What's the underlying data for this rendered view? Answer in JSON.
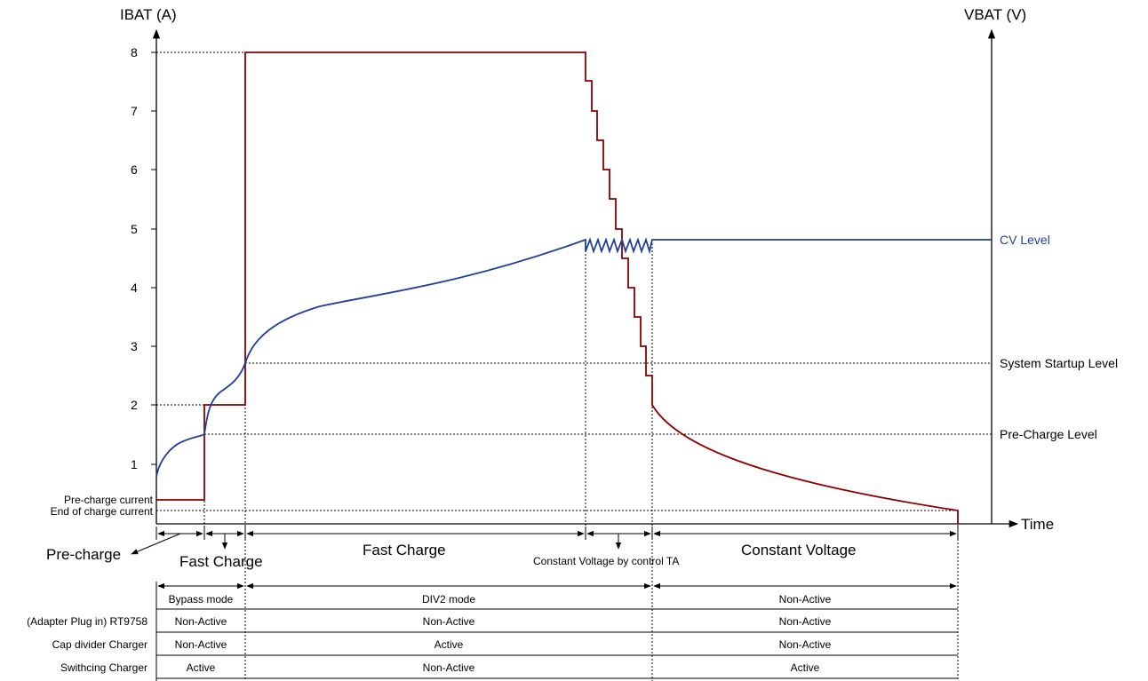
{
  "axes": {
    "left_label": "IBAT (A)",
    "right_label": "VBAT (V)",
    "x_label": "Time",
    "y_ticks": [
      "1",
      "2",
      "3",
      "4",
      "5",
      "6",
      "7",
      "8"
    ]
  },
  "left_level_labels": {
    "precharge_current": "Pre-charge current",
    "end_of_charge_current": "End of charge current"
  },
  "right_level_labels": {
    "cv_level": "CV Level",
    "system_startup": "System Startup Level",
    "precharge_level": "Pre-Charge Level"
  },
  "phases": {
    "precharge": "Pre-charge",
    "fast_charge_1": "Fast Charge",
    "fast_charge_2": "Fast Charge",
    "cv_by_ta": "Constant Voltage by control TA",
    "constant_voltage": "Constant Voltage"
  },
  "modes": {
    "bypass": "Bypass mode",
    "div2": "DIV2 mode",
    "non_active": "Non-Active"
  },
  "table": {
    "rows": [
      {
        "label": "(Adapter Plug in) RT9758",
        "cells": [
          "Non-Active",
          "Non-Active",
          "Non-Active"
        ]
      },
      {
        "label": "Cap divider Charger",
        "cells": [
          "Non-Active",
          "Active",
          "Non-Active"
        ]
      },
      {
        "label": "Swithcing Charger",
        "cells": [
          "Active",
          "Non-Active",
          "Active"
        ]
      }
    ]
  },
  "colors": {
    "current_curve": "#8b0000",
    "voltage_curve": "#1f3f99"
  }
}
